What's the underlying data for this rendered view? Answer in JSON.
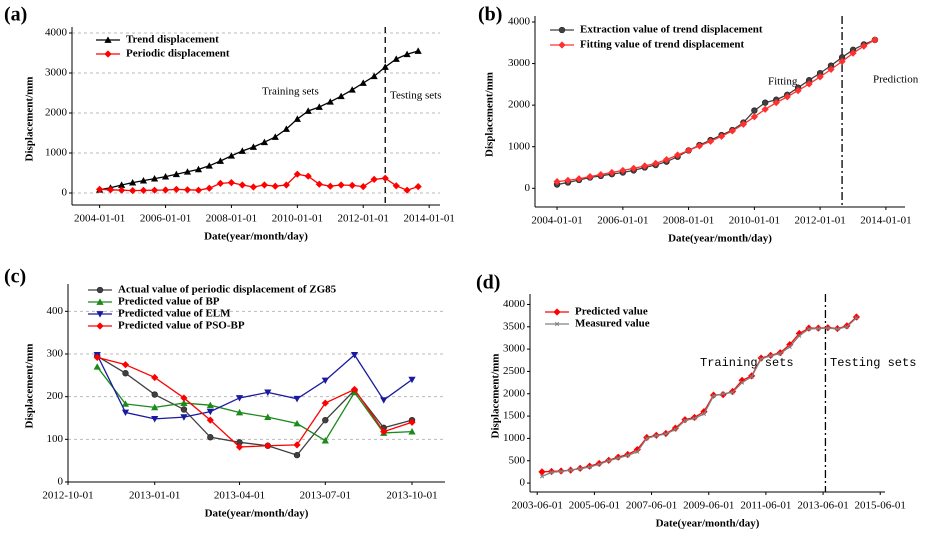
{
  "chart_data": [
    {
      "type": "line",
      "panel_label": "(a)",
      "xlabel": "Date(year/month/day)",
      "ylabel": "Displacement/mm",
      "x": [
        "2004-01-01",
        "2004-05-01",
        "2004-09-01",
        "2005-01-01",
        "2005-05-01",
        "2005-09-01",
        "2006-01-01",
        "2006-05-01",
        "2006-09-01",
        "2007-01-01",
        "2007-05-01",
        "2007-09-01",
        "2008-01-01",
        "2008-05-01",
        "2008-09-01",
        "2009-01-01",
        "2009-05-01",
        "2009-09-01",
        "2010-01-01",
        "2010-05-01",
        "2010-09-01",
        "2011-01-01",
        "2011-05-01",
        "2011-09-01",
        "2012-01-01",
        "2012-05-01",
        "2012-09-01",
        "2013-01-01",
        "2013-05-01",
        "2013-09-01"
      ],
      "series": [
        {
          "name": "Trend displacement",
          "color": "#000000",
          "marker": "triangle",
          "values": [
            80,
            130,
            200,
            260,
            310,
            360,
            410,
            470,
            530,
            590,
            680,
            800,
            930,
            1050,
            1150,
            1270,
            1400,
            1600,
            1850,
            2050,
            2150,
            2280,
            2420,
            2580,
            2750,
            2920,
            3150,
            3350,
            3470,
            3550
          ]
        },
        {
          "name": "Periodic displacement",
          "color": "#ff0000",
          "marker": "diamond",
          "values": [
            90,
            80,
            70,
            60,
            65,
            70,
            75,
            90,
            80,
            70,
            120,
            240,
            260,
            200,
            150,
            200,
            170,
            200,
            470,
            420,
            220,
            170,
            200,
            190,
            160,
            340,
            370,
            180,
            70,
            160
          ]
        }
      ],
      "xlim": [
        "2003-03-01",
        "2014-05-01"
      ],
      "xticks": [
        "2004-01-01",
        "2006-01-01",
        "2008-01-01",
        "2010-01-01",
        "2012-01-01",
        "2014-01-01"
      ],
      "ylim": [
        -300,
        4000
      ],
      "yticks": [
        0,
        1000,
        2000,
        3000,
        4000
      ],
      "grid": true,
      "legend": "top-left",
      "split_x": "2012-09-01",
      "split_style": "dashed",
      "annotations": [
        "Training sets",
        "Testing sets"
      ]
    },
    {
      "type": "line",
      "panel_label": "(b)",
      "xlabel": "Date(year/month/day)",
      "ylabel": "Displacement/mm",
      "x": [
        "2004-01-01",
        "2004-05-01",
        "2004-09-01",
        "2005-01-01",
        "2005-05-01",
        "2005-09-01",
        "2006-01-01",
        "2006-05-01",
        "2006-09-01",
        "2007-01-01",
        "2007-05-01",
        "2007-09-01",
        "2008-01-01",
        "2008-05-01",
        "2008-09-01",
        "2009-01-01",
        "2009-05-01",
        "2009-09-01",
        "2010-01-01",
        "2010-05-01",
        "2010-09-01",
        "2011-01-01",
        "2011-05-01",
        "2011-09-01",
        "2012-01-01",
        "2012-05-01",
        "2012-09-01",
        "2013-01-01",
        "2013-05-01",
        "2013-09-01"
      ],
      "series": [
        {
          "name": "Extraction value of trend displacement",
          "color": "#404040",
          "marker": "circle",
          "values": [
            90,
            140,
            200,
            260,
            300,
            340,
            380,
            430,
            500,
            560,
            640,
            760,
            910,
            1040,
            1160,
            1280,
            1400,
            1580,
            1870,
            2060,
            2130,
            2250,
            2420,
            2600,
            2770,
            2950,
            3150,
            3330,
            3460,
            3570
          ]
        },
        {
          "name": "Fitting value of trend displacement",
          "color": "#ff3030",
          "marker": "diamond",
          "values": [
            160,
            190,
            230,
            280,
            330,
            380,
            430,
            480,
            540,
            600,
            690,
            800,
            910,
            1020,
            1130,
            1250,
            1380,
            1540,
            1720,
            1900,
            2060,
            2200,
            2350,
            2510,
            2680,
            2860,
            3050,
            3250,
            3420,
            3570
          ]
        }
      ],
      "xlim": [
        "2003-05-01",
        "2014-08-01"
      ],
      "xticks": [
        "2004-01-01",
        "2006-01-01",
        "2008-01-01",
        "2010-01-01",
        "2012-01-01",
        "2014-01-01"
      ],
      "ylim": [
        -450,
        4000
      ],
      "yticks": [
        0,
        1000,
        2000,
        3000,
        4000
      ],
      "grid": false,
      "legend": "top-left",
      "split_x": "2012-09-01",
      "split_style": "dash-dot",
      "annotations": [
        "Fitting",
        "Prediction"
      ]
    },
    {
      "type": "line",
      "panel_label": "(c)",
      "xlabel": "Date(year/month/day)",
      "ylabel": "Displacement/mm",
      "x": [
        "2012-11-01",
        "2012-12-01",
        "2013-01-01",
        "2013-02-01",
        "2013-03-01",
        "2013-04-01",
        "2013-05-01",
        "2013-06-01",
        "2013-07-01",
        "2013-08-01",
        "2013-09-01",
        "2013-10-01"
      ],
      "series": [
        {
          "name": "Actual value of periodic displacement of ZG85",
          "color": "#404040",
          "marker": "circle",
          "values": [
            295,
            255,
            205,
            170,
            105,
            93,
            85,
            63,
            145,
            215,
            127,
            145
          ]
        },
        {
          "name": "Predicted value of BP",
          "color": "#1a8a1a",
          "marker": "triangle",
          "values": [
            270,
            183,
            175,
            185,
            180,
            163,
            152,
            137,
            97,
            210,
            115,
            118
          ]
        },
        {
          "name": "Predicted value of ELM",
          "color": "#1a1aa0",
          "marker": "triangle-down",
          "values": [
            298,
            163,
            148,
            152,
            165,
            197,
            210,
            195,
            238,
            298,
            192,
            240
          ]
        },
        {
          "name": "Predicted value of PSO-BP",
          "color": "#ff0000",
          "marker": "diamond",
          "values": [
            292,
            275,
            245,
            197,
            145,
            82,
            85,
            87,
            185,
            217,
            118,
            140
          ]
        }
      ],
      "xlim": [
        "2012-10-01",
        "2013-11-05"
      ],
      "xticks": [
        "2012-10-01",
        "2013-01-01",
        "2013-04-01",
        "2013-07-01",
        "2013-10-01"
      ],
      "ylim": [
        0,
        450
      ],
      "yticks": [
        0,
        100,
        200,
        300,
        400
      ],
      "grid": true,
      "legend": "top-left"
    },
    {
      "type": "line",
      "panel_label": "(d)",
      "xlabel": "Date(year/month/day)",
      "ylabel": "Displacement/mm",
      "x": [
        "2003-08-01",
        "2003-12-01",
        "2004-04-01",
        "2004-08-01",
        "2004-12-01",
        "2005-04-01",
        "2005-08-01",
        "2005-12-01",
        "2006-04-01",
        "2006-08-01",
        "2006-12-01",
        "2007-04-01",
        "2007-08-01",
        "2007-12-01",
        "2008-04-01",
        "2008-08-01",
        "2008-12-01",
        "2009-04-01",
        "2009-08-01",
        "2009-12-01",
        "2010-04-01",
        "2010-08-01",
        "2010-12-01",
        "2011-04-01",
        "2011-08-01",
        "2011-12-01",
        "2012-04-01",
        "2012-08-01",
        "2012-12-01",
        "2013-04-01",
        "2013-08-01",
        "2013-12-01",
        "2014-04-01",
        "2014-08-01"
      ],
      "series": [
        {
          "name": "Predicted value",
          "color": "#ff0000",
          "marker": "diamond",
          "values": [
            250,
            260,
            270,
            290,
            330,
            380,
            440,
            510,
            580,
            640,
            750,
            1020,
            1070,
            1110,
            1230,
            1420,
            1470,
            1600,
            1970,
            1980,
            2050,
            2300,
            2400,
            2800,
            2860,
            2920,
            3100,
            3350,
            3470,
            3470,
            3480,
            3460,
            3520,
            3720
          ]
        },
        {
          "name": "Measured value",
          "color": "#808080",
          "marker": "cross",
          "values": [
            150,
            240,
            260,
            290,
            320,
            360,
            420,
            500,
            560,
            620,
            700,
            1000,
            1060,
            1100,
            1200,
            1400,
            1450,
            1550,
            1950,
            2000,
            2030,
            2250,
            2380,
            2780,
            2850,
            2900,
            3050,
            3300,
            3450,
            3460,
            3470,
            3450,
            3500,
            3700
          ]
        }
      ],
      "xlim": [
        "2003-03-01",
        "2015-08-01"
      ],
      "xticks": [
        "2003-06-01",
        "2005-06-01",
        "2007-06-01",
        "2009-06-01",
        "2011-06-01",
        "2013-06-01",
        "2015-06-01"
      ],
      "ylim": [
        -200,
        4100
      ],
      "yticks": [
        0,
        500,
        1000,
        1500,
        2000,
        2500,
        3000,
        3500,
        4000
      ],
      "grid": false,
      "legend": "top-left",
      "split_x": "2013-07-01",
      "split_style": "dash-dot",
      "annotations": [
        "Training sets",
        "Testing sets"
      ]
    }
  ]
}
